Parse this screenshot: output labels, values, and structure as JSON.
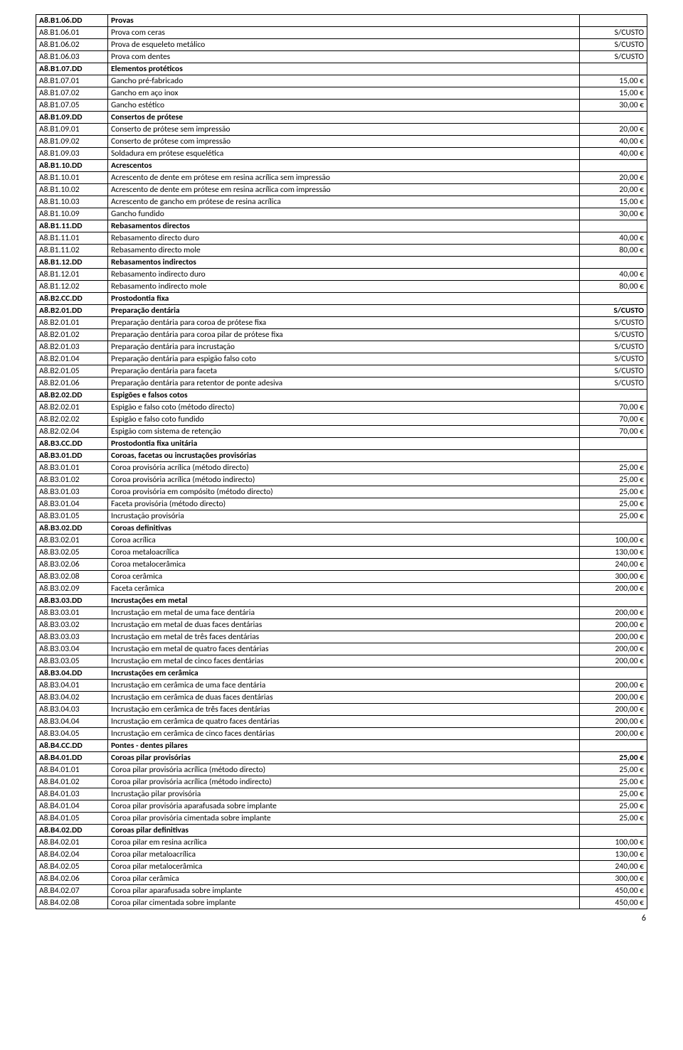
{
  "page_number": "6",
  "rows": [
    {
      "code": "A8.B1.06.DD",
      "desc": "Provas",
      "price": "",
      "bold": true
    },
    {
      "code": "A8.B1.06.01",
      "desc": "Prova com ceras",
      "price": "S/CUSTO",
      "bold": false
    },
    {
      "code": "A8.B1.06.02",
      "desc": "Prova de esqueleto metálico",
      "price": "S/CUSTO",
      "bold": false
    },
    {
      "code": "A8.B1.06.03",
      "desc": "Prova com dentes",
      "price": "S/CUSTO",
      "bold": false
    },
    {
      "code": "A8.B1.07.DD",
      "desc": "Elementos protéticos",
      "price": "",
      "bold": true
    },
    {
      "code": "A8.B1.07.01",
      "desc": "Gancho pré-fabricado",
      "price": "15,00 €",
      "bold": false
    },
    {
      "code": "A8.B1.07.02",
      "desc": "Gancho em aço inox",
      "price": "15,00 €",
      "bold": false
    },
    {
      "code": "A8.B1.07.05",
      "desc": "Gancho estético",
      "price": "30,00 €",
      "bold": false
    },
    {
      "code": "A8.B1.09.DD",
      "desc": "Consertos de prótese",
      "price": "",
      "bold": true
    },
    {
      "code": "A8.B1.09.01",
      "desc": "Conserto de prótese sem impressão",
      "price": "20,00 €",
      "bold": false
    },
    {
      "code": "A8.B1.09.02",
      "desc": "Conserto de prótese com impressão",
      "price": "40,00 €",
      "bold": false
    },
    {
      "code": "A8.B1.09.03",
      "desc": "Soldadura em prótese esquelética",
      "price": "40,00 €",
      "bold": false
    },
    {
      "code": "A8.B1.10.DD",
      "desc": "Acrescentos",
      "price": "",
      "bold": true
    },
    {
      "code": "A8.B1.10.01",
      "desc": "Acrescento de dente em prótese em resina acrílica sem impressão",
      "price": "20,00 €",
      "bold": false
    },
    {
      "code": "A8.B1.10.02",
      "desc": "Acrescento de dente em prótese em resina acrílica com impressão",
      "price": "20,00 €",
      "bold": false
    },
    {
      "code": "A8.B1.10.03",
      "desc": "Acrescento de gancho em prótese de resina acrílica",
      "price": "15,00 €",
      "bold": false
    },
    {
      "code": "A8.B1.10.09",
      "desc": "Gancho fundido",
      "price": "30,00 €",
      "bold": false
    },
    {
      "code": "A8.B1.11.DD",
      "desc": "Rebasamentos directos",
      "price": "",
      "bold": true
    },
    {
      "code": "A8.B1.11.01",
      "desc": "Rebasamento directo duro",
      "price": "40,00 €",
      "bold": false
    },
    {
      "code": "A8.B1.11.02",
      "desc": "Rebasamento directo mole",
      "price": "80,00 €",
      "bold": false
    },
    {
      "code": "A8.B1.12.DD",
      "desc": "Rebasamentos indirectos",
      "price": "",
      "bold": true
    },
    {
      "code": "A8.B1.12.01",
      "desc": "Rebasamento indirecto duro",
      "price": "40,00 €",
      "bold": false
    },
    {
      "code": "A8.B1.12.02",
      "desc": "Rebasamento indirecto mole",
      "price": "80,00 €",
      "bold": false
    },
    {
      "code": "A8.B2.CC.DD",
      "desc": "Prostodontia fixa",
      "price": "",
      "bold": true
    },
    {
      "code": "A8.B2.01.DD",
      "desc": "Preparação dentária",
      "price": "S/CUSTO",
      "bold": true
    },
    {
      "code": "A8.B2.01.01",
      "desc": "Preparação dentária para coroa de prótese fixa",
      "price": "S/CUSTO",
      "bold": false
    },
    {
      "code": "A8.B2.01.02",
      "desc": "Preparação dentária para coroa pilar de prótese fixa",
      "price": "S/CUSTO",
      "bold": false
    },
    {
      "code": "A8.B2.01.03",
      "desc": "Preparação dentária para incrustação",
      "price": "S/CUSTO",
      "bold": false
    },
    {
      "code": "A8.B2.01.04",
      "desc": "Preparação dentária para espigão falso coto",
      "price": "S/CUSTO",
      "bold": false
    },
    {
      "code": "A8.B2.01.05",
      "desc": "Preparação dentária para faceta",
      "price": "S/CUSTO",
      "bold": false
    },
    {
      "code": "A8.B2.01.06",
      "desc": "Preparação dentária para retentor de ponte adesiva",
      "price": "S/CUSTO",
      "bold": false
    },
    {
      "code": "A8.B2.02.DD",
      "desc": "Espigões e falsos cotos",
      "price": "",
      "bold": true
    },
    {
      "code": "A8.B2.02.01",
      "desc": "Espigão e falso coto (método directo)",
      "price": "70,00 €",
      "bold": false
    },
    {
      "code": "A8.B2.02.02",
      "desc": "Espigão e falso coto fundido",
      "price": "70,00 €",
      "bold": false
    },
    {
      "code": "A8.B2.02.04",
      "desc": "Espigão com sistema de retenção",
      "price": "70,00 €",
      "bold": false
    },
    {
      "code": "A8.B3.CC.DD",
      "desc": "Prostodontia fixa unitária",
      "price": "",
      "bold": true
    },
    {
      "code": "A8.B3.01.DD",
      "desc": " Coroas, facetas ou incrustações provisórias",
      "price": "",
      "bold": true
    },
    {
      "code": "A8.B3.01.01",
      "desc": "Coroa provisória acrílica (método directo)",
      "price": "25,00 €",
      "bold": false
    },
    {
      "code": "A8.B3.01.02",
      "desc": "Coroa provisória acrílica (método indirecto)",
      "price": "25,00 €",
      "bold": false
    },
    {
      "code": "A8.B3.01.03",
      "desc": "Coroa provisória em compósito (método directo)",
      "price": "25,00 €",
      "bold": false
    },
    {
      "code": "A8.B3.01.04",
      "desc": "Faceta provisória (método directo)",
      "price": "25,00 €",
      "bold": false
    },
    {
      "code": "A8.B3.01.05",
      "desc": "Incrustação provisória",
      "price": "25,00 €",
      "bold": false
    },
    {
      "code": "A8.B3.02.DD",
      "desc": "Coroas definitivas",
      "price": "",
      "bold": true
    },
    {
      "code": "A8.B3.02.01",
      "desc": "Coroa acrílica",
      "price": "100,00 €",
      "bold": false
    },
    {
      "code": "A8.B3.02.05",
      "desc": "Coroa metaloacrílica",
      "price": "130,00 €",
      "bold": false
    },
    {
      "code": "A8.B3.02.06",
      "desc": "Coroa metalocerâmica",
      "price": "240,00 €",
      "bold": false
    },
    {
      "code": "A8.B3.02.08",
      "desc": "Coroa cerâmica",
      "price": "300,00 €",
      "bold": false
    },
    {
      "code": "A8.B3.02.09",
      "desc": "Faceta cerâmica",
      "price": "200,00 €",
      "bold": false
    },
    {
      "code": "A8.B3.03.DD",
      "desc": "Incrustações em metal",
      "price": "",
      "bold": true
    },
    {
      "code": "A8.B3.03.01",
      "desc": "Incrustação em metal de uma face dentária",
      "price": "200,00 €",
      "bold": false
    },
    {
      "code": "A8.B3.03.02",
      "desc": "Incrustação em metal de duas faces dentárias",
      "price": "200,00 €",
      "bold": false
    },
    {
      "code": "A8.B3.03.03",
      "desc": "Incrustação em metal de três faces dentárias",
      "price": "200,00 €",
      "bold": false
    },
    {
      "code": "A8.B3.03.04",
      "desc": "Incrustação em metal de quatro faces dentárias",
      "price": "200,00 €",
      "bold": false
    },
    {
      "code": "A8.B3.03.05",
      "desc": "Incrustação em metal de cinco faces dentárias",
      "price": "200,00 €",
      "bold": false
    },
    {
      "code": "A8.B3.04.DD",
      "desc": "Incrustações em cerâmica",
      "price": "",
      "bold": true
    },
    {
      "code": "A8.B3.04.01",
      "desc": "Incrustação em cerâmica de uma face dentária",
      "price": "200,00 €",
      "bold": false
    },
    {
      "code": "A8.B3.04.02",
      "desc": "Incrustação em cerâmica de duas faces dentárias",
      "price": "200,00 €",
      "bold": false
    },
    {
      "code": "A8.B3.04.03",
      "desc": "Incrustação em cerâmica de três faces dentárias",
      "price": "200,00 €",
      "bold": false
    },
    {
      "code": "A8.B3.04.04",
      "desc": "Incrustação em cerâmica de quatro faces dentárias",
      "price": "200,00 €",
      "bold": false
    },
    {
      "code": "A8.B3.04.05",
      "desc": "Incrustação em cerâmica de cinco faces dentárias",
      "price": "200,00 €",
      "bold": false
    },
    {
      "code": "A8.B4.CC.DD",
      "desc": "Pontes - dentes pilares",
      "price": "",
      "bold": true
    },
    {
      "code": "A8.B4.01.DD",
      "desc": "Coroas pilar provisórias",
      "price": "25,00 €",
      "bold": true
    },
    {
      "code": "A8.B4.01.01",
      "desc": "Coroa pilar provisória acrílica (método directo)",
      "price": "25,00 €",
      "bold": false
    },
    {
      "code": "A8.B4.01.02",
      "desc": "Coroa pilar provisória acrílica (método indirecto)",
      "price": "25,00 €",
      "bold": false
    },
    {
      "code": "A8.B4.01.03",
      "desc": "Incrustação pilar provisória",
      "price": "25,00 €",
      "bold": false
    },
    {
      "code": "A8.B4.01.04",
      "desc": "Coroa pilar provisória aparafusada sobre implante",
      "price": "25,00 €",
      "bold": false
    },
    {
      "code": "A8.B4.01.05",
      "desc": "Coroa pilar provisória cimentada sobre implante",
      "price": "25,00 €",
      "bold": false
    },
    {
      "code": "A8.B4.02.DD",
      "desc": "Coroas pilar definitivas",
      "price": "",
      "bold": true
    },
    {
      "code": "A8.B4.02.01",
      "desc": "Coroa pilar em resina acrílica",
      "price": "100,00 €",
      "bold": false
    },
    {
      "code": "A8.B4.02.04",
      "desc": "Coroa pilar metaloacrílica",
      "price": "130,00 €",
      "bold": false
    },
    {
      "code": "A8.B4.02.05",
      "desc": "Coroa pilar metalocerâmica",
      "price": "240,00 €",
      "bold": false
    },
    {
      "code": "A8.B4.02.06",
      "desc": "Coroa pilar cerâmica",
      "price": "300,00 €",
      "bold": false
    },
    {
      "code": "A8.B4.02.07",
      "desc": "Coroa pilar aparafusada sobre implante",
      "price": "450,00 €",
      "bold": false
    },
    {
      "code": "A8.B4.02.08",
      "desc": "Coroa pilar cimentada sobre implante",
      "price": "450,00 €",
      "bold": false
    }
  ]
}
